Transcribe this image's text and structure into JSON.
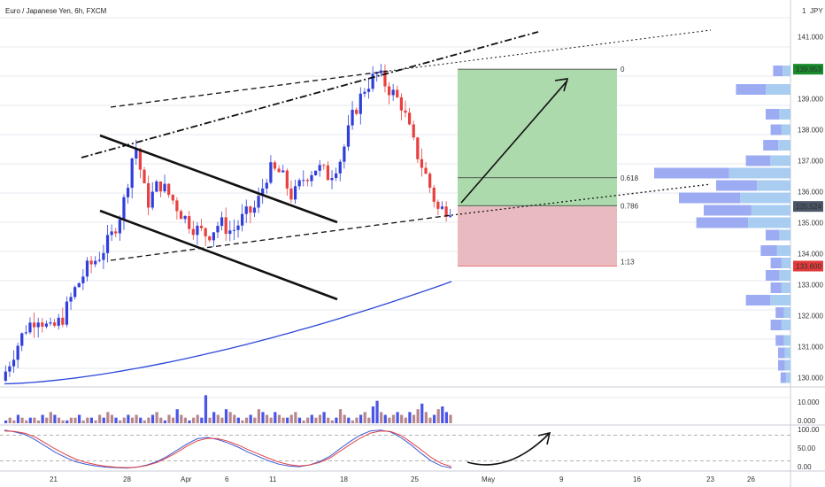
{
  "header": {
    "title": "Euro / Japanese Yen, 6h, FXCM",
    "currency": "JPY",
    "currency_mult": "1"
  },
  "colors": {
    "up": "#2f3fdb",
    "down": "#e8403f",
    "ema": "#2b47d9",
    "vol_up": "#4a55e8",
    "vol_down": "#b7868d",
    "tp_zone": "#a8d8a8",
    "sl_zone": "#e8b7bd",
    "stoch_k": "#3b5bdb",
    "stoch_d": "#e34040",
    "vp": "#8c9cf0",
    "vp_light": "#9fc8f0",
    "grid": "#e6e9ef",
    "price_tag": "#178a2b",
    "sl_tag": "#e23a3a",
    "last_tag": "#4a5566"
  },
  "price_axis": {
    "ticks": [
      "141.000",
      "140.000",
      "139.000",
      "138.000",
      "137.000",
      "136.000",
      "135.000",
      "134.000",
      "133.000",
      "132.000",
      "131.000",
      "130.000"
    ],
    "tags": {
      "target": "139.953",
      "last": "135.524",
      "stop": "133.600"
    }
  },
  "volume_axis": {
    "ticks": [
      "10.000",
      "0.000"
    ]
  },
  "stoch_axis": {
    "ticks": [
      "100.00",
      "50.00",
      "0.00"
    ]
  },
  "time_axis": {
    "ticks": [
      "21",
      "28",
      "Apr",
      "6",
      "11",
      "18",
      "25",
      "May",
      "9",
      "16",
      "23",
      "26"
    ]
  },
  "fib_labels": {
    "top": "0",
    "mid": "0.618",
    "low": "0.786",
    "rr": "1:13"
  },
  "chart_data": {
    "type": "candlestick",
    "title": "Euro / Japanese Yen, 6h, FXCM",
    "ylim": [
      129.7,
      141.9
    ],
    "x_ticks": [
      "21",
      "28",
      "Apr",
      "6",
      "11",
      "18",
      "25",
      "May",
      "9",
      "16",
      "23",
      "26"
    ],
    "y_ticks": [
      141,
      140,
      139,
      138,
      137,
      136,
      135,
      134,
      133,
      132,
      131,
      130
    ],
    "price_path": [
      129.9,
      130.8,
      131.6,
      132.0,
      131.5,
      131.9,
      132.8,
      133.5,
      133.9,
      134.5,
      135.5,
      137.6,
      135.6,
      136.3,
      135.8,
      135.2,
      134.8,
      134.6,
      135.0,
      134.7,
      135.2,
      135.5,
      136.7,
      136.6,
      135.8,
      136.5,
      136.8,
      136.5,
      137.1,
      138.5,
      139.4,
      139.8,
      139.3,
      138.8,
      137.5,
      136.5,
      135.4,
      135.5
    ],
    "ema": {
      "start": 129.8,
      "end": 133.1
    },
    "levels": {
      "target": 139.953,
      "last": 135.524,
      "stop": 133.6,
      "fib_0618": 136.45,
      "fib_0786": 135.55
    },
    "volume_ylim": [
      0,
      12
    ],
    "volume": [
      1,
      2,
      1,
      3,
      2,
      1,
      2,
      2,
      1,
      3,
      2,
      4,
      3,
      2,
      1,
      1,
      2,
      2,
      3,
      1,
      2,
      2,
      1,
      3,
      2,
      4,
      3,
      2,
      1,
      2,
      3,
      2,
      3,
      2,
      1,
      2,
      3,
      4,
      2,
      1,
      3,
      2,
      5,
      3,
      2,
      1,
      2,
      3,
      2,
      10,
      2,
      4,
      3,
      2,
      5,
      4,
      3,
      2,
      1,
      2,
      3,
      2,
      5,
      4,
      3,
      2,
      4,
      3,
      2,
      2,
      3,
      4,
      2,
      1,
      2,
      3,
      2,
      3,
      4,
      2,
      1,
      2,
      5,
      3,
      2,
      1,
      2,
      3,
      4,
      2,
      6,
      8,
      4,
      3,
      2,
      3,
      4,
      3,
      2,
      4,
      3,
      5,
      7,
      4,
      2,
      3,
      5,
      6,
      4,
      3
    ],
    "stoch_ylim": [
      0,
      100
    ],
    "stoch_k": [
      92,
      88,
      82,
      70,
      55,
      40,
      28,
      18,
      12,
      8,
      5,
      4,
      3,
      5,
      10,
      18,
      30,
      45,
      60,
      72,
      75,
      70,
      62,
      52,
      40,
      30,
      20,
      12,
      8,
      6,
      10,
      18,
      30,
      48,
      65,
      80,
      90,
      92,
      88,
      75,
      58,
      38,
      20,
      8,
      3
    ],
    "stoch_d": [
      90,
      89,
      85,
      76,
      62,
      48,
      35,
      24,
      16,
      11,
      7,
      5,
      4,
      5,
      9,
      16,
      27,
      40,
      55,
      67,
      73,
      72,
      66,
      57,
      46,
      36,
      26,
      17,
      11,
      8,
      10,
      16,
      26,
      42,
      58,
      73,
      85,
      90,
      89,
      80,
      64,
      46,
      28,
      14,
      6
    ]
  }
}
